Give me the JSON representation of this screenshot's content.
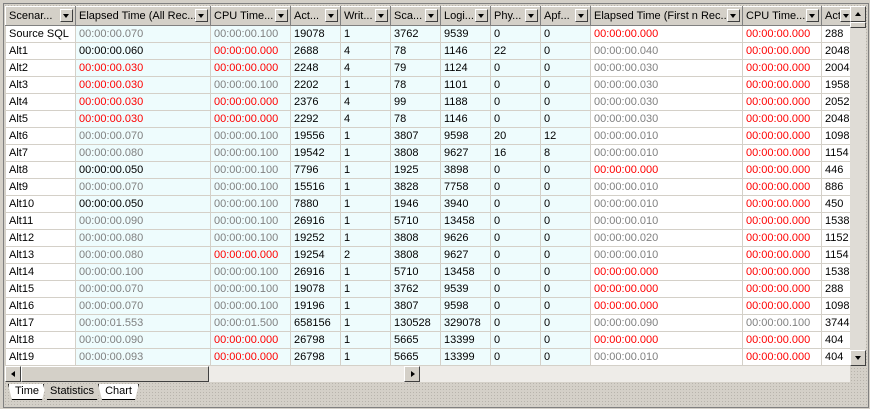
{
  "colors": {
    "k": "#000000",
    "g": "#808080",
    "r": "#ff0000",
    "cyan_bg": "#eefcfd"
  },
  "columns": [
    "Scenar...",
    "Elapsed Time (All Rec...",
    "CPU Time...",
    "Act...",
    "Writ...",
    "Sca...",
    "Logi...",
    "Phy...",
    "Apf...",
    "Elapsed Time (First n Rec...",
    "CPU Time...",
    "Act..."
  ],
  "rows": [
    {
      "cells": [
        "Source SQL",
        "00:00:00.070",
        "00:00:00.100",
        "19078",
        "1",
        "3762",
        "9539",
        "0",
        "0",
        "00:00:00.000",
        "00:00:00.000",
        "288"
      ],
      "style": "kggkkkkkkrrk"
    },
    {
      "cells": [
        "Alt1",
        "00:00:00.060",
        "00:00:00.000",
        "2688",
        "4",
        "78",
        "1146",
        "22",
        "0",
        "00:00:00.040",
        "00:00:00.000",
        "2048"
      ],
      "style": "kkrkkkkkkgrk"
    },
    {
      "cells": [
        "Alt2",
        "00:00:00.030",
        "00:00:00.000",
        "2248",
        "4",
        "79",
        "1124",
        "0",
        "0",
        "00:00:00.030",
        "00:00:00.000",
        "2004"
      ],
      "style": "krrkkkkkkgrk"
    },
    {
      "cells": [
        "Alt3",
        "00:00:00.030",
        "00:00:00.100",
        "2202",
        "1",
        "78",
        "1101",
        "0",
        "0",
        "00:00:00.030",
        "00:00:00.000",
        "1958"
      ],
      "style": "krgkkkkkkgrk"
    },
    {
      "cells": [
        "Alt4",
        "00:00:00.030",
        "00:00:00.000",
        "2376",
        "4",
        "99",
        "1188",
        "0",
        "0",
        "00:00:00.030",
        "00:00:00.000",
        "2052"
      ],
      "style": "krrkkkkkkgrk"
    },
    {
      "cells": [
        "Alt5",
        "00:00:00.030",
        "00:00:00.000",
        "2292",
        "4",
        "78",
        "1146",
        "0",
        "0",
        "00:00:00.030",
        "00:00:00.000",
        "2048"
      ],
      "style": "krrkkkkkkgrk"
    },
    {
      "cells": [
        "Alt6",
        "00:00:00.070",
        "00:00:00.100",
        "19556",
        "1",
        "3807",
        "9598",
        "20",
        "12",
        "00:00:00.010",
        "00:00:00.000",
        "1098"
      ],
      "style": "kggkkkkkkgrk"
    },
    {
      "cells": [
        "Alt7",
        "00:00:00.080",
        "00:00:00.100",
        "19542",
        "1",
        "3808",
        "9627",
        "16",
        "8",
        "00:00:00.010",
        "00:00:00.000",
        "1154"
      ],
      "style": "kggkkkkkkgrk"
    },
    {
      "cells": [
        "Alt8",
        "00:00:00.050",
        "00:00:00.100",
        "7796",
        "1",
        "1925",
        "3898",
        "0",
        "0",
        "00:00:00.000",
        "00:00:00.000",
        "446"
      ],
      "style": "kkgkkkkkkrrk"
    },
    {
      "cells": [
        "Alt9",
        "00:00:00.070",
        "00:00:00.100",
        "15516",
        "1",
        "3828",
        "7758",
        "0",
        "0",
        "00:00:00.010",
        "00:00:00.000",
        "886"
      ],
      "style": "kggkkkkkkgrk"
    },
    {
      "cells": [
        "Alt10",
        "00:00:00.050",
        "00:00:00.100",
        "7880",
        "1",
        "1946",
        "3940",
        "0",
        "0",
        "00:00:00.010",
        "00:00:00.000",
        "450"
      ],
      "style": "kkgkkkkkkgrk"
    },
    {
      "cells": [
        "Alt11",
        "00:00:00.090",
        "00:00:00.100",
        "26916",
        "1",
        "5710",
        "13458",
        "0",
        "0",
        "00:00:00.010",
        "00:00:00.000",
        "1538"
      ],
      "style": "kggkkkkkkgrk"
    },
    {
      "cells": [
        "Alt12",
        "00:00:00.080",
        "00:00:00.100",
        "19252",
        "1",
        "3808",
        "9626",
        "0",
        "0",
        "00:00:00.020",
        "00:00:00.000",
        "1152"
      ],
      "style": "kggkkkkkkgrk"
    },
    {
      "cells": [
        "Alt13",
        "00:00:00.080",
        "00:00:00.000",
        "19254",
        "2",
        "3808",
        "9627",
        "0",
        "0",
        "00:00:00.010",
        "00:00:00.000",
        "1154"
      ],
      "style": "kgrkkkkkkgrk"
    },
    {
      "cells": [
        "Alt14",
        "00:00:00.100",
        "00:00:00.100",
        "26916",
        "1",
        "5710",
        "13458",
        "0",
        "0",
        "00:00:00.000",
        "00:00:00.000",
        "1538"
      ],
      "style": "kggkkkkkkrrk"
    },
    {
      "cells": [
        "Alt15",
        "00:00:00.070",
        "00:00:00.100",
        "19078",
        "1",
        "3762",
        "9539",
        "0",
        "0",
        "00:00:00.000",
        "00:00:00.000",
        "288"
      ],
      "style": "kggkkkkkkrrk"
    },
    {
      "cells": [
        "Alt16",
        "00:00:00.070",
        "00:00:00.100",
        "19196",
        "1",
        "3807",
        "9598",
        "0",
        "0",
        "00:00:00.000",
        "00:00:00.000",
        "1098"
      ],
      "style": "kggkkkkkkrrk"
    },
    {
      "cells": [
        "Alt17",
        "00:00:01.553",
        "00:00:01.500",
        "658156",
        "1",
        "130528",
        "329078",
        "0",
        "0",
        "00:00:00.090",
        "00:00:00.100",
        "3744"
      ],
      "style": "kggkkkkkkggk"
    },
    {
      "cells": [
        "Alt18",
        "00:00:00.090",
        "00:00:00.000",
        "26798",
        "1",
        "5665",
        "13399",
        "0",
        "0",
        "00:00:00.000",
        "00:00:00.000",
        "404"
      ],
      "style": "kgrkkkkkkrrk"
    },
    {
      "cells": [
        "Alt19",
        "00:00:00.093",
        "00:00:00.000",
        "26798",
        "1",
        "5665",
        "13399",
        "0",
        "0",
        "00:00:00.010",
        "00:00:00.000",
        "404"
      ],
      "style": "kgrkkkkkkgrk"
    }
  ],
  "tabs": [
    {
      "label": "Time",
      "active": false
    },
    {
      "label": "Statistics",
      "active": true
    },
    {
      "label": "Chart",
      "active": false
    }
  ]
}
